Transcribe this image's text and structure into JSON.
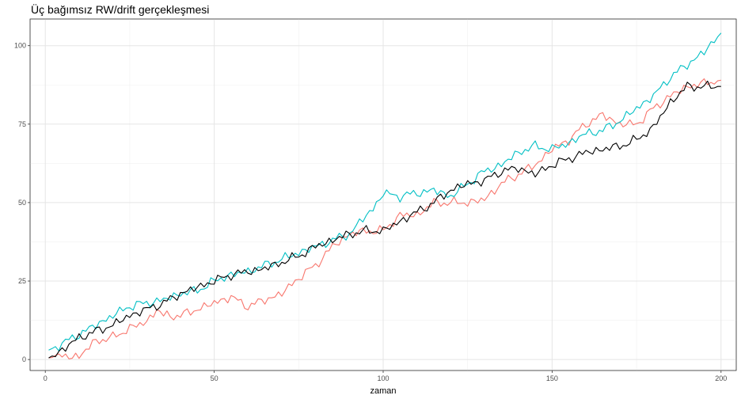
{
  "chart_data": {
    "type": "line",
    "title": "Üç bağımsız RW/drift gerçekleşmesi",
    "xlabel": "zaman",
    "ylabel": "",
    "xlim": [
      -4.5,
      204.5
    ],
    "ylim": [
      -3.5,
      108.5
    ],
    "xticks": [
      0,
      50,
      100,
      150,
      200
    ],
    "yticks": [
      0,
      25,
      50,
      75,
      100
    ],
    "xtick_labels": [
      "0",
      "50",
      "100",
      "150",
      "200"
    ],
    "ytick_labels": [
      "0",
      "25",
      "50",
      "75",
      "100"
    ],
    "grid": true,
    "legend": "none",
    "series": [
      {
        "color": "#F8766D",
        "x": [
          1,
          5,
          10,
          12,
          15,
          20,
          25,
          30,
          33,
          35,
          40,
          45,
          50,
          55,
          58,
          60,
          65,
          70,
          75,
          80,
          85,
          90,
          95,
          100,
          105,
          110,
          115,
          118,
          120,
          125,
          130,
          135,
          140,
          145,
          150,
          155,
          160,
          165,
          170,
          175,
          180,
          185,
          190,
          195,
          200
        ],
        "values": [
          0.5,
          1,
          1,
          3,
          6,
          7,
          10,
          12,
          16,
          14,
          14,
          16,
          18,
          20,
          18,
          17,
          19,
          21,
          26,
          30,
          36,
          40,
          41,
          41,
          46,
          46,
          50,
          50,
          50,
          50,
          51,
          56,
          59,
          62,
          67,
          70,
          75,
          78,
          75,
          75,
          80,
          84,
          87,
          88,
          89
        ]
      },
      {
        "color": "#00BFC4",
        "x": [
          1,
          5,
          10,
          15,
          20,
          25,
          30,
          35,
          40,
          45,
          50,
          55,
          60,
          65,
          70,
          75,
          80,
          85,
          90,
          95,
          97,
          100,
          105,
          110,
          115,
          120,
          125,
          130,
          135,
          140,
          145,
          150,
          155,
          160,
          165,
          170,
          175,
          180,
          185,
          190,
          195,
          200
        ],
        "values": [
          3,
          5,
          8,
          11,
          14,
          17,
          18,
          19,
          21,
          22,
          25,
          27,
          28,
          30,
          32,
          34,
          36,
          38,
          40,
          46,
          48,
          53,
          52,
          53,
          54,
          52,
          56,
          60,
          62,
          66,
          68,
          67,
          69,
          72,
          73,
          76,
          80,
          84,
          90,
          94,
          98,
          104
        ]
      },
      {
        "color": "#000000",
        "x": [
          1,
          5,
          10,
          15,
          20,
          25,
          30,
          35,
          40,
          45,
          50,
          55,
          60,
          65,
          70,
          75,
          80,
          85,
          90,
          95,
          100,
          105,
          110,
          115,
          120,
          125,
          130,
          135,
          140,
          145,
          150,
          155,
          160,
          165,
          170,
          175,
          180,
          185,
          190,
          195,
          200
        ],
        "values": [
          0.5,
          3,
          7,
          9,
          11,
          14,
          16,
          18,
          21,
          23,
          25,
          27,
          28,
          29,
          31,
          33,
          36,
          38,
          40,
          41,
          41,
          44,
          47,
          50,
          54,
          56,
          57,
          60,
          61,
          59,
          62,
          64,
          66,
          67,
          68,
          70,
          74,
          82,
          87,
          87,
          87
        ]
      }
    ]
  }
}
